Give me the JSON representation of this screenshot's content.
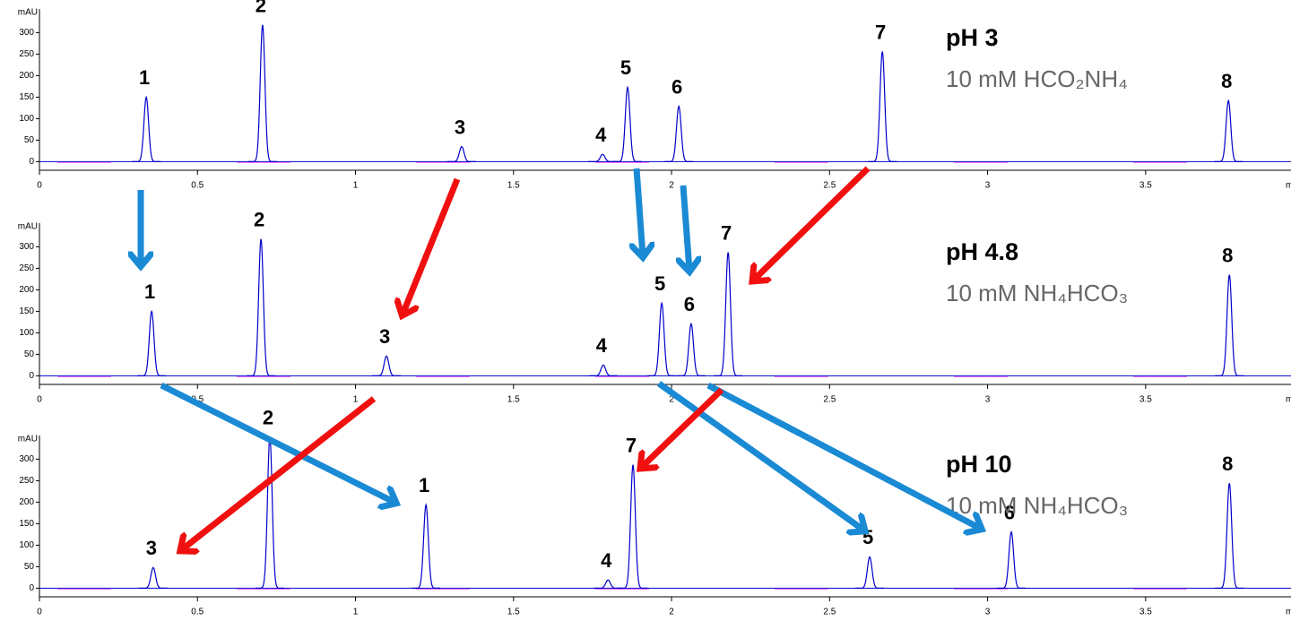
{
  "chart_data": [
    {
      "type": "chromatogram",
      "title": "pH 3",
      "subtitle": "10 mM HCO₂NH₄",
      "y_label": "mAU",
      "x_label": "min",
      "color": "#0000cc",
      "xlim": [
        0,
        3.96
      ],
      "ylim": [
        -20,
        355
      ],
      "xticks": [
        0,
        0.5,
        1,
        1.5,
        2,
        2.5,
        3,
        3.5
      ],
      "yticks": [
        0,
        50,
        100,
        150,
        200,
        250,
        300
      ],
      "labels": [
        "1",
        "2",
        "3",
        "4",
        "5",
        "6",
        "7",
        "8"
      ],
      "x": [
        0.338,
        0.706,
        1.336,
        1.782,
        1.861,
        2.023,
        2.667,
        3.762
      ],
      "values": [
        150,
        318,
        35,
        17,
        173,
        129,
        256,
        142
      ]
    },
    {
      "type": "chromatogram",
      "title": "pH 4.8",
      "subtitle": "10 mM NH₄HCO₃",
      "y_label": "mAU",
      "x_label": "min",
      "color": "#0000cc",
      "xlim": [
        0,
        3.96
      ],
      "ylim": [
        -20,
        355
      ],
      "xticks": [
        0,
        0.5,
        1,
        1.5,
        2,
        2.5,
        3,
        3.5
      ],
      "yticks": [
        0,
        50,
        100,
        150,
        200,
        250,
        300
      ],
      "labels": [
        "1",
        "2",
        "3",
        "4",
        "5",
        "6",
        "7",
        "8"
      ],
      "x": [
        0.355,
        0.701,
        1.098,
        1.784,
        1.969,
        2.062,
        2.179,
        3.765
      ],
      "values": [
        150,
        318,
        46,
        25,
        169,
        121,
        287,
        235
      ]
    },
    {
      "type": "chromatogram",
      "title": "pH 10",
      "subtitle": "10 mM NH₄HCO₃",
      "y_label": "mAU",
      "x_label": "min",
      "color": "#0000cc",
      "xlim": [
        0,
        3.96
      ],
      "ylim": [
        -20,
        355
      ],
      "xticks": [
        0,
        0.5,
        1,
        1.5,
        2,
        2.5,
        3,
        3.5
      ],
      "yticks": [
        0,
        50,
        100,
        150,
        200,
        250,
        300
      ],
      "labels": [
        "3",
        "2",
        "1",
        "4",
        "7",
        "5",
        "6",
        "8"
      ],
      "x": [
        0.36,
        0.729,
        1.223,
        1.799,
        1.878,
        2.627,
        3.075,
        3.765
      ],
      "values": [
        48,
        352,
        194,
        19,
        287,
        73,
        131,
        244
      ]
    }
  ]
}
